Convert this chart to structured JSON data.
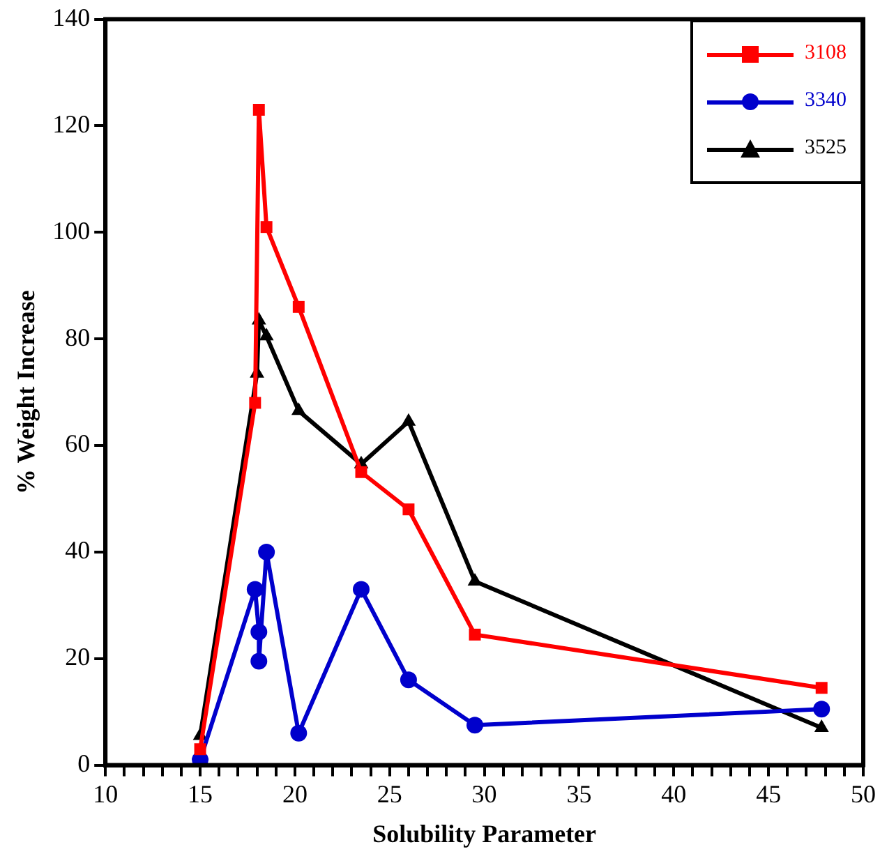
{
  "chart_data": {
    "type": "line",
    "xlabel": "Solubility Parameter",
    "ylabel": "% Weight Increase",
    "xlim": [
      10,
      50
    ],
    "xticks": [
      10,
      {
        "value": 11,
        "label": null
      },
      {
        "value": 12,
        "label": null
      },
      {
        "value": 13,
        "label": null
      },
      {
        "value": 14,
        "label": null
      },
      15,
      {
        "value": 16,
        "label": null
      },
      {
        "value": 17,
        "label": null
      },
      {
        "value": 18,
        "label": null
      },
      {
        "value": 19,
        "label": null
      },
      20,
      {
        "value": 21,
        "label": null
      },
      {
        "value": 22,
        "label": null
      },
      {
        "value": 23,
        "label": null
      },
      {
        "value": 24,
        "label": null
      },
      25,
      {
        "value": 26,
        "label": null
      },
      {
        "value": 27,
        "label": null
      },
      {
        "value": 28,
        "label": null
      },
      {
        "value": 29,
        "label": null
      },
      30,
      {
        "value": 31,
        "label": null
      },
      {
        "value": 32,
        "label": null
      },
      {
        "value": 33,
        "label": null
      },
      {
        "value": 34,
        "label": null
      },
      35,
      {
        "value": 36,
        "label": null
      },
      {
        "value": 37,
        "label": null
      },
      {
        "value": 38,
        "label": null
      },
      {
        "value": 39,
        "label": null
      },
      40,
      {
        "value": 41,
        "label": null
      },
      {
        "value": 42,
        "label": null
      },
      {
        "value": 43,
        "label": null
      },
      {
        "value": 44,
        "label": null
      },
      45,
      {
        "value": 46,
        "label": null
      },
      {
        "value": 47,
        "label": null
      },
      {
        "value": 48,
        "label": null
      },
      {
        "value": 49,
        "label": null
      },
      50
    ],
    "ylim": [
      0,
      140
    ],
    "yticks": [
      0,
      20,
      40,
      60,
      80,
      100,
      120,
      140
    ],
    "grid": false,
    "legend": "top right",
    "line_style": "solid",
    "series": [
      {
        "name": "3108",
        "color": "#ff0000",
        "marker": "square",
        "x": [
          15,
          17.9,
          18.1,
          18.5,
          20.2,
          23.5,
          26,
          29.5,
          47.8
        ],
        "values": [
          3,
          68,
          123,
          101,
          86,
          55,
          48,
          24.5,
          14.5
        ]
      },
      {
        "name": "3340",
        "color": "#0000cc",
        "marker": "circle",
        "x": [
          15,
          17.9,
          18.1,
          18.1,
          18.5,
          20.2,
          23.5,
          26,
          29.5,
          47.8
        ],
        "values": [
          1,
          33,
          25,
          19.5,
          40,
          6,
          33,
          16,
          7.5,
          10.5
        ]
      },
      {
        "name": "3525",
        "color": "#000000",
        "marker": "triangle",
        "x": [
          15,
          18,
          18.1,
          18.5,
          20.2,
          23.5,
          26,
          29.5,
          47.8
        ],
        "values": [
          5.5,
          73.5,
          83.5,
          80.5,
          66.5,
          56.5,
          64.5,
          34.5,
          7
        ]
      }
    ]
  }
}
